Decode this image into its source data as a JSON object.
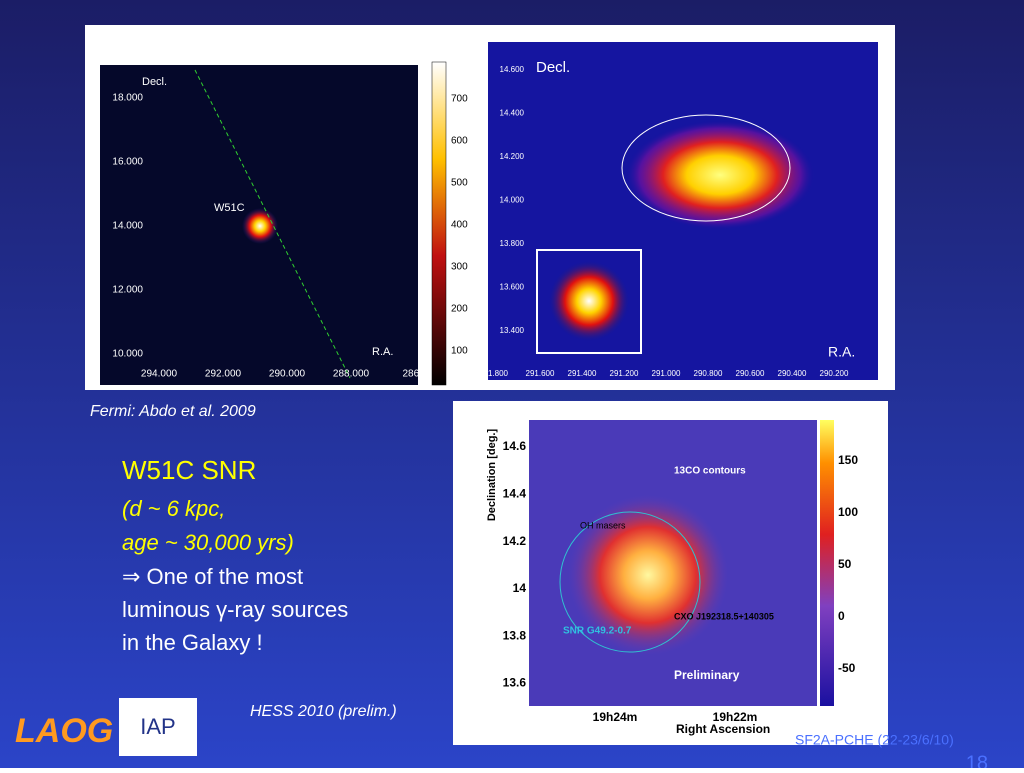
{
  "slide": {
    "fermi_caption": "Fermi:  Abdo et al. 2009",
    "hess_caption": "HESS 2010 (prelim.)",
    "footer": "SF2A-PCHE (22-23/6/10)",
    "page_number": "18",
    "body": {
      "title": "W51C SNR",
      "lines_italic": [
        "(d ~ 6 kpc,",
        "age ~ 30,000 yrs)"
      ],
      "lines": [
        "⇒ One of the most",
        "luminous γ-ray sources",
        "in the Galaxy !"
      ]
    },
    "logos": [
      "LAOG",
      "IAP"
    ],
    "fermi_map": {
      "y_label": "Decl.",
      "x_label": "R.A.",
      "source": "W51C",
      "yticks": [
        "18.000",
        "16.000",
        "14.000",
        "12.000",
        "10.000"
      ],
      "xticks": [
        "294.000",
        "292.000",
        "290.000",
        "288.000",
        "286.0"
      ],
      "colorbar": [
        "700",
        "600",
        "500",
        "400",
        "300",
        "200",
        "100"
      ]
    },
    "zoom_map": {
      "y_label": "Decl.",
      "x_label": "R.A.",
      "yticks": [
        "14.600",
        "14.400",
        "14.200",
        "14.000",
        "13.800",
        "13.600",
        "13.400"
      ],
      "xticks": [
        "1.800",
        "291.600",
        "291.400",
        "291.200",
        "291.000",
        "290.800",
        "290.600",
        "290.400",
        "290.200"
      ]
    },
    "hess_map": {
      "y_label": "Declination [deg.]",
      "x_label": "Right Ascension",
      "yticks": [
        "14.6",
        "14.4",
        "14.2",
        "14",
        "13.8",
        "13.6"
      ],
      "xticks": [
        "19h24m",
        "19h22m"
      ],
      "colorbar": [
        "150",
        "100",
        "50",
        "0",
        "-50"
      ],
      "annotations": {
        "co": "13CO contours",
        "oh": "OH masers",
        "cxo": "CXO J192318.5+140305",
        "snr": "SNR G49.2-0.7",
        "prelim": "Preliminary"
      }
    }
  }
}
